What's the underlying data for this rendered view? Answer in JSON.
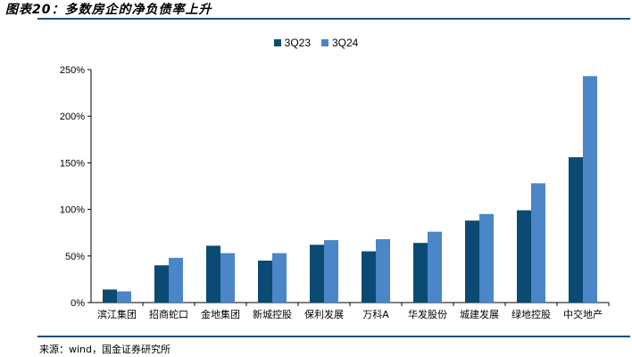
{
  "header": {
    "title": "图表20：多数房企的净负债率上升"
  },
  "footer": {
    "source": "来源：wind，国金证券研究所"
  },
  "colors": {
    "series_3q23": "#0b4a73",
    "series_3q24": "#4a86c8",
    "rule": "#1f4e79"
  },
  "chart_data": {
    "type": "bar",
    "title": "",
    "xlabel": "",
    "ylabel": "",
    "ylim": [
      0,
      250
    ],
    "y_ticks": [
      "0%",
      "50%",
      "100%",
      "150%",
      "200%",
      "250%"
    ],
    "grid": false,
    "legend_position": "top-center",
    "categories": [
      "滨江集团",
      "招商蛇口",
      "金地集团",
      "新城控股",
      "保利发展",
      "万科A",
      "华发股份",
      "城建发展",
      "绿地控股",
      "中交地产"
    ],
    "series": [
      {
        "name": "3Q23",
        "values": [
          14,
          40,
          61,
          45,
          62,
          55,
          64,
          88,
          99,
          156
        ]
      },
      {
        "name": "3Q24",
        "values": [
          12,
          48,
          53,
          53,
          67,
          68,
          76,
          95,
          128,
          243
        ]
      }
    ]
  }
}
